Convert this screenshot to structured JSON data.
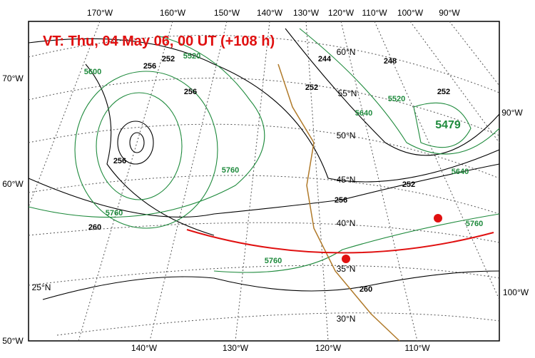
{
  "title": "VT:  Thu, 04 May 06, 00 UT (+108 h)",
  "lon_top": [
    "170°W",
    "160°W",
    "150°W",
    "140°W",
    "130°W",
    "120°W",
    "110°W",
    "100°W",
    "90°W"
  ],
  "lon_left": [
    "70°W",
    "60°W",
    "50°W"
  ],
  "lon_right": [
    "90°W",
    "100°W"
  ],
  "lon_bottom": [
    "140°W",
    "130°W",
    "120°W",
    "110°W"
  ],
  "lat_labels": [
    "60°N",
    "55°N",
    "50°N",
    "45°N",
    "40°N",
    "35°N",
    "30°N",
    "25°N"
  ],
  "thickness_labels": [
    "252",
    "244",
    "248",
    "256",
    "256",
    "252",
    "252",
    "256",
    "252",
    "256",
    "260",
    "260"
  ],
  "height_labels": [
    "5520",
    "5600",
    "5520",
    "5640",
    "5760",
    "5640",
    "5760",
    "5760",
    "5760"
  ],
  "low_label": "5479"
}
